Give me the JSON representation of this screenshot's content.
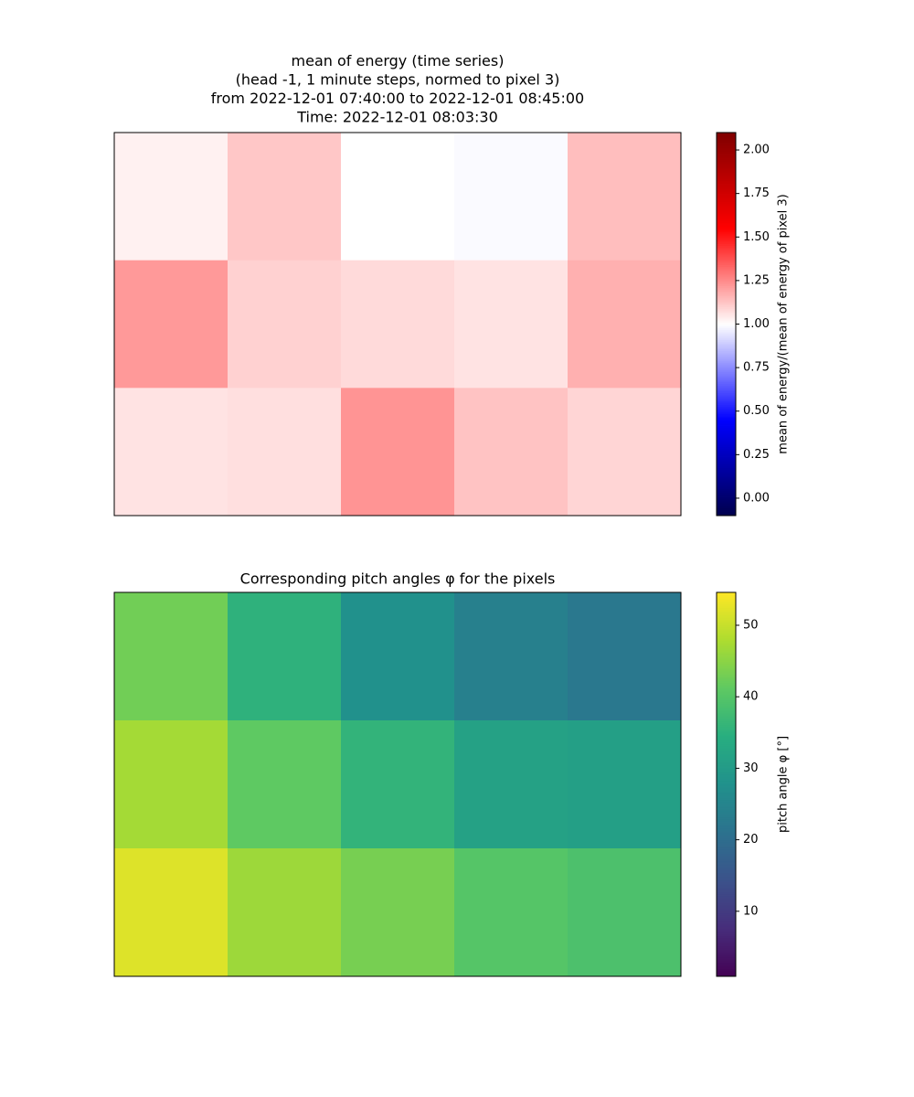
{
  "chart_data": [
    {
      "type": "heatmap",
      "title": [
        "mean of energy (time series)",
        "(head -1, 1 minute steps, normed to pixel 3)",
        "from 2022-12-01 07:40:00 to 2022-12-01 08:45:00",
        "Time: 2022-12-01 08:03:30"
      ],
      "values": [
        [
          1.03,
          1.12,
          1.0,
          0.99,
          1.14
        ],
        [
          1.22,
          1.1,
          1.08,
          1.06,
          1.17
        ],
        [
          1.06,
          1.07,
          1.23,
          1.13,
          1.09
        ]
      ],
      "colormap": "seismic",
      "clim": [
        -0.1,
        2.1
      ],
      "cticks": [
        {
          "value": 0,
          "label": "0.00"
        },
        {
          "value": 0.25,
          "label": "0.25"
        },
        {
          "value": 0.5,
          "label": "0.50"
        },
        {
          "value": 0.75,
          "label": "0.75"
        },
        {
          "value": 1,
          "label": "1.00"
        },
        {
          "value": 1.25,
          "label": "1.25"
        },
        {
          "value": 1.5,
          "label": "1.50"
        },
        {
          "value": 1.75,
          "label": "1.75"
        },
        {
          "value": 2,
          "label": "2.00"
        }
      ],
      "colorbar_label": "mean of energy/(mean of energy of pixel 3)"
    },
    {
      "type": "heatmap",
      "title": [
        "Corresponding pitch angles φ for the pixels"
      ],
      "values": [
        [
          42.8,
          35.3,
          27.8,
          24.0,
          22.4
        ],
        [
          47.1,
          41.2,
          35.8,
          31.5,
          31.0
        ],
        [
          51.9,
          46.5,
          43.3,
          40.1,
          39.0
        ]
      ],
      "colormap": "viridis",
      "clim": [
        0.9,
        54.6
      ],
      "cticks": [
        10,
        20,
        30,
        40,
        50
      ],
      "colorbar_label": "pitch angle φ [°]"
    }
  ]
}
